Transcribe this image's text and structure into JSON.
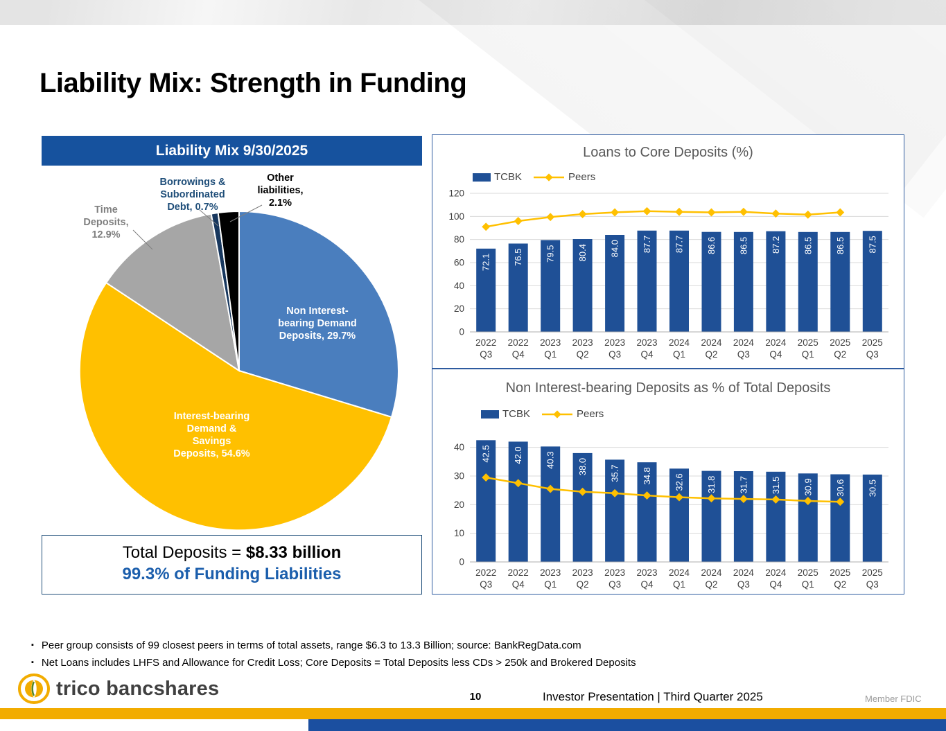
{
  "slide": {
    "title": "Liability Mix: Strength in Funding",
    "page_number": "10",
    "footer_center": "Investor Presentation  |  Third Quarter 2025",
    "member_fdic": "Member FDIC",
    "logo_text": "trico bancshares",
    "footnotes": [
      "Peer group consists of 99 closest peers in terms of total assets, range $6.3 to 13.3 Billion; source: BankRegData.com",
      "Net Loans includes LHFS and Allowance for Credit Loss; Core Deposits = Total Deposits less CDs > 250k and Brokered Deposits"
    ]
  },
  "left_panel": {
    "header": "Liability Mix 9/30/2025",
    "total_prefix": "Total Deposits = ",
    "total_bold": "$8.33 billion",
    "funding_line": "99.3% of Funding Liabilities",
    "labels": {
      "non_interest": "Non Interest-\nbearing Demand\nDeposits, 29.7%",
      "interest_bearing": "Interest-bearing\nDemand &\nSavings\nDeposits, 54.6%",
      "time_deposits": "Time\nDeposits,\n12.9%",
      "borrowings": "Borrowings &\nSubordinated\nDebt, 0.7%",
      "other": "Other\nliabilities,\n2.1%"
    }
  },
  "colors": {
    "header_blue": "#16529E",
    "bar_blue": "#1F5096",
    "accent_yellow": "#FFC000",
    "funding_blue": "#1B5EAC",
    "panel_border": "#2E5B9F",
    "bottom_gold": "#F2AC00",
    "bottom_blue": "#1B4FA0",
    "chart_title_gray": "#595959",
    "axis_gray": "#404040",
    "grid_gray": "#D9D9D9"
  },
  "chart_data": [
    {
      "type": "pie",
      "title": "Liability Mix 9/30/2025",
      "slices": [
        {
          "label": "Non Interest-bearing Demand Deposits",
          "value": 29.7,
          "color": "#4A7EBE"
        },
        {
          "label": "Interest-bearing Demand & Savings Deposits",
          "value": 54.6,
          "color": "#FFC000"
        },
        {
          "label": "Time Deposits",
          "value": 12.9,
          "color": "#A6A6A6"
        },
        {
          "label": "Borrowings & Subordinated Debt",
          "value": 0.7,
          "color": "#17375E"
        },
        {
          "label": "Other liabilities",
          "value": 2.1,
          "color": "#000000"
        }
      ]
    },
    {
      "type": "bar",
      "title": "Loans to Core Deposits (%)",
      "xlabel": "",
      "ylabel": "",
      "ylim": [
        0,
        120
      ],
      "yticks": [
        0,
        20,
        40,
        60,
        80,
        100,
        120
      ],
      "grid": true,
      "legend_position": "top-left",
      "categories": [
        "2022 Q3",
        "2022 Q4",
        "2023 Q1",
        "2023 Q2",
        "2023 Q3",
        "2023 Q4",
        "2024 Q1",
        "2024 Q2",
        "2024 Q3",
        "2024 Q4",
        "2025 Q1",
        "2025 Q2",
        "2025 Q3"
      ],
      "series": [
        {
          "name": "TCBK",
          "kind": "bar",
          "color": "#1F5096",
          "values": [
            72.1,
            76.5,
            79.5,
            80.4,
            84.0,
            87.7,
            87.7,
            86.6,
            86.5,
            87.2,
            86.5,
            86.5,
            87.5
          ]
        },
        {
          "name": "Peers",
          "kind": "line",
          "color": "#FFC000",
          "values": [
            91,
            96,
            99.5,
            102,
            103.5,
            104.5,
            104,
            103.5,
            104,
            102.5,
            101.5,
            103.5,
            null
          ]
        }
      ]
    },
    {
      "type": "bar",
      "title": "Non Interest-bearing Deposits as % of Total Deposits",
      "xlabel": "",
      "ylabel": "",
      "ylim": [
        0,
        45
      ],
      "yticks": [
        0,
        10,
        20,
        30,
        40
      ],
      "grid": true,
      "legend_position": "top-left",
      "categories": [
        "2022 Q3",
        "2022 Q4",
        "2023 Q1",
        "2023 Q2",
        "2023 Q3",
        "2023 Q4",
        "2024 Q1",
        "2024 Q2",
        "2024 Q3",
        "2024 Q4",
        "2025 Q1",
        "2025 Q2",
        "2025 Q3"
      ],
      "series": [
        {
          "name": "TCBK",
          "kind": "bar",
          "color": "#1F5096",
          "values": [
            42.5,
            42.0,
            40.3,
            38.0,
            35.7,
            34.8,
            32.6,
            31.8,
            31.7,
            31.5,
            30.9,
            30.6,
            30.5
          ]
        },
        {
          "name": "Peers",
          "kind": "line",
          "color": "#FFC000",
          "values": [
            29.5,
            27.5,
            25.5,
            24.5,
            24.0,
            23.2,
            22.6,
            22.2,
            22.0,
            21.8,
            21.3,
            21.0,
            null
          ]
        }
      ]
    }
  ]
}
